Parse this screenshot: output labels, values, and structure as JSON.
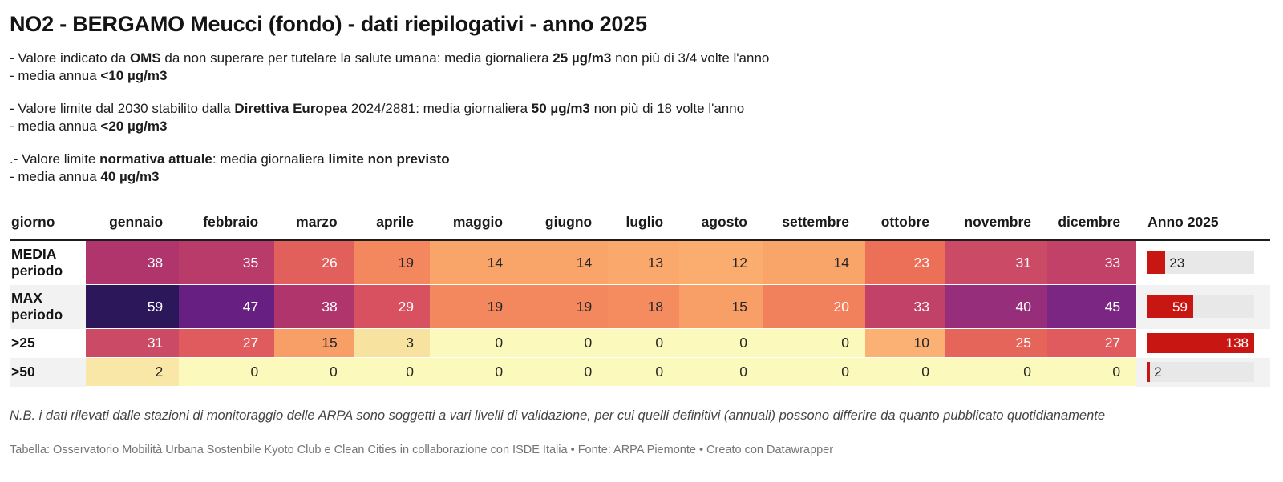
{
  "title": "NO2 - BERGAMO Meucci (fondo) - dati riepilogativi - anno 2025",
  "notes": [
    [
      [
        {
          "text": "- Valore indicato da ",
          "bold": false
        },
        {
          "text": "OMS",
          "bold": true
        },
        {
          "text": " da non superare per tutelare la salute umana: media giornaliera ",
          "bold": false
        },
        {
          "text": "25 µg/m3",
          "bold": true
        },
        {
          "text": " non più di 3/4 volte l'anno",
          "bold": false
        }
      ],
      [
        {
          "text": "- media annua ",
          "bold": false
        },
        {
          "text": "<10 µg/m3",
          "bold": true
        }
      ]
    ],
    [
      [
        {
          "text": "- Valore limite dal 2030 stabilito dalla ",
          "bold": false
        },
        {
          "text": "Direttiva Europea",
          "bold": true
        },
        {
          "text": " 2024/2881: media giornaliera ",
          "bold": false
        },
        {
          "text": "50 µg/m3",
          "bold": true
        },
        {
          "text": " non più di 18 volte l'anno",
          "bold": false
        }
      ],
      [
        {
          "text": "- media annua ",
          "bold": false
        },
        {
          "text": "<20 µg/m3",
          "bold": true
        }
      ]
    ],
    [
      [
        {
          "text": ".- Valore limite ",
          "bold": false
        },
        {
          "text": "normativa attuale",
          "bold": true
        },
        {
          "text": ": media giornaliera ",
          "bold": false
        },
        {
          "text": "limite non previsto",
          "bold": true
        }
      ],
      [
        {
          "text": "- media annua ",
          "bold": false
        },
        {
          "text": "40 µg/m3",
          "bold": true
        }
      ]
    ]
  ],
  "chart_data": {
    "type": "table",
    "title": "NO2 - BERGAMO Meucci (fondo) - dati riepilogativi - anno 2025",
    "columns": [
      "giorno",
      "gennaio",
      "febbraio",
      "marzo",
      "aprile",
      "maggio",
      "giugno",
      "luglio",
      "agosto",
      "settembre",
      "ottobre",
      "novembre",
      "dicembre",
      "Anno 2025"
    ],
    "rows": [
      {
        "label": "MEDIA periodo",
        "values": [
          38,
          35,
          26,
          19,
          14,
          14,
          13,
          12,
          14,
          23,
          31,
          33
        ],
        "bar": 23
      },
      {
        "label": "MAX periodo",
        "values": [
          59,
          47,
          38,
          29,
          19,
          19,
          18,
          15,
          20,
          33,
          40,
          45
        ],
        "bar": 59
      },
      {
        "label": ">25",
        "values": [
          31,
          27,
          15,
          3,
          0,
          0,
          0,
          0,
          0,
          10,
          25,
          27
        ],
        "bar": 138
      },
      {
        "label": ">50",
        "values": [
          2,
          0,
          0,
          0,
          0,
          0,
          0,
          0,
          0,
          0,
          0,
          0
        ],
        "bar": 2
      }
    ],
    "heatmap": {
      "value_colors": {
        "0": "#fcf9bc",
        "2": "#f9e7a7",
        "3": "#f8e2a0",
        "10": "#fbb173",
        "12": "#fbad6f",
        "13": "#faa86b",
        "14": "#f9a469",
        "15": "#f89e67",
        "18": "#f48c60",
        "19": "#f3875e",
        "20": "#f1815c",
        "23": "#ec6f58",
        "25": "#e5655a",
        "26": "#e2605c",
        "27": "#df5b5e",
        "29": "#d75161",
        "31": "#cb4a66",
        "33": "#c14169",
        "35": "#b93b6a",
        "38": "#b0356d",
        "40": "#962e7b",
        "45": "#7b2683",
        "47": "#671f82",
        "59": "#2c175a"
      },
      "white_text_min": 20,
      "dark_text_color": "#262626",
      "white_text_color": "#ffffff"
    },
    "bar": {
      "max": 138,
      "color": "#c81712",
      "track_color": "#e8e8e8",
      "inside_label_min_ratio": 0.25
    },
    "alt_row_color": "#f2f2f2",
    "legend_position": "none",
    "grid": false
  },
  "validation_note": "N.B. i dati rilevati dalle stazioni di monitoraggio delle ARPA sono soggetti a vari livelli di validazione, per cui quelli definitivi (annuali) possono differire da quanto pubblicato quotidianamente",
  "attribution": "Tabella: Osservatorio Mobilità Urbana Sostenbile Kyoto Club e Clean Cities in collaborazione con ISDE Italia • Fonte: ARPA Piemonte • Creato con Datawrapper"
}
